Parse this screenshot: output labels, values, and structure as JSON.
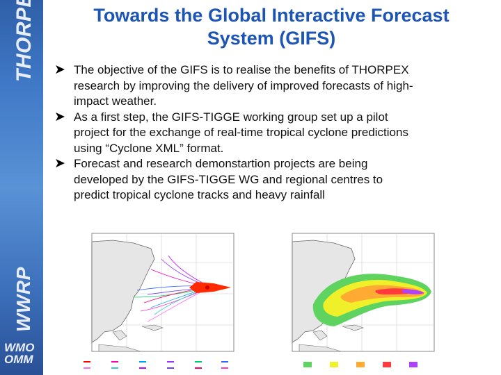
{
  "sidebar": {
    "top_label": "THORPEX",
    "bottom_label": "WWRP",
    "logo_line1": "WMO",
    "logo_line2": "OMM"
  },
  "slide": {
    "title_line1": "Towards the Global Interactive Forecast",
    "title_line2": "System (GIFS)",
    "bullets": [
      {
        "l1": "The objective of the GIFS is to realise the benefits of THORPEX",
        "l2": "research by improving the delivery of improved forecasts of high-",
        "l3": "impact weather."
      },
      {
        "l1": "As a first step, the GIFS-TIGGE working group set up a pilot",
        "l2": "project for the exchange of real-time tropical cyclone predictions",
        "l3": "using “Cyclone XML” format."
      },
      {
        "l1": "Forecast and research demonstartion projects are being",
        "l2": "developed by the GIFS-TIGGE WG and regional centres to",
        "l3": "predict  tropical cyclone tracks and heavy rainfall"
      }
    ]
  },
  "colors": {
    "title": "#1d55b4",
    "sidebar_top": "#2f5fa8",
    "sidebar_mid": "#5a92d6",
    "land": "#dcdcdc"
  },
  "icons": {
    "bullet": "arrow-bullet-icon"
  }
}
